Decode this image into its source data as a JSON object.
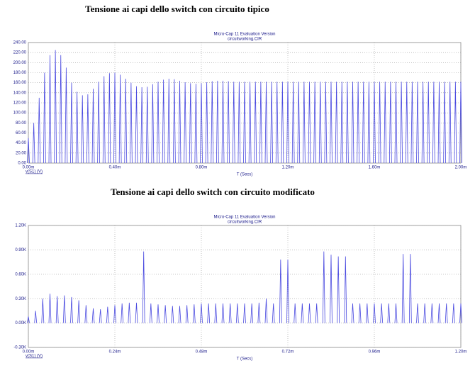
{
  "chart_data": [
    {
      "type": "stem",
      "caption": "Tensione ai capi dello switch con circuito tipico",
      "title": "Micro-Cap 11 Evaluation Version",
      "subtitle": "circuitworking.CIR",
      "x_label": "T (Secs)",
      "grid": true,
      "xlim": [
        0,
        2.0
      ],
      "xticks": [
        {
          "value": 0,
          "label": "0.00m"
        },
        {
          "value": 0.4,
          "label": "0.40m"
        },
        {
          "value": 0.8,
          "label": "0.80m"
        },
        {
          "value": 1.2,
          "label": "1.20m"
        },
        {
          "value": 1.6,
          "label": "1.60m"
        },
        {
          "value": 2.0,
          "label": "2.00m"
        }
      ],
      "ylim": [
        0,
        240
      ],
      "yticks": [
        {
          "value": 0,
          "label": "0.00"
        },
        {
          "value": 20,
          "label": "20.00"
        },
        {
          "value": 40,
          "label": "40.00"
        },
        {
          "value": 60,
          "label": "60.00"
        },
        {
          "value": 80,
          "label": "80.00"
        },
        {
          "value": 100,
          "label": "100.00"
        },
        {
          "value": 120,
          "label": "120.00"
        },
        {
          "value": 140,
          "label": "140.00"
        },
        {
          "value": 160,
          "label": "160.00"
        },
        {
          "value": 180,
          "label": "180.00"
        },
        {
          "value": 200,
          "label": "200.00"
        },
        {
          "value": 220,
          "label": "220.00"
        },
        {
          "value": 240,
          "label": "240.00"
        }
      ],
      "x": [
        0,
        0.025,
        0.05,
        0.075,
        0.1,
        0.125,
        0.15,
        0.175,
        0.2,
        0.225,
        0.25,
        0.275,
        0.3,
        0.325,
        0.35,
        0.375,
        0.4,
        0.425,
        0.45,
        0.475,
        0.5,
        0.525,
        0.55,
        0.575,
        0.6,
        0.625,
        0.65,
        0.675,
        0.7,
        0.725,
        0.75,
        0.775,
        0.8,
        0.825,
        0.85,
        0.875,
        0.9,
        0.925,
        0.95,
        0.975,
        1.0,
        1.025,
        1.05,
        1.075,
        1.1,
        1.125,
        1.15,
        1.175,
        1.2,
        1.225,
        1.25,
        1.275,
        1.3,
        1.325,
        1.35,
        1.375,
        1.4,
        1.425,
        1.45,
        1.475,
        1.5,
        1.525,
        1.55,
        1.575,
        1.6,
        1.625,
        1.65,
        1.675,
        1.7,
        1.725,
        1.75,
        1.775,
        1.8,
        1.825,
        1.85,
        1.875,
        1.9,
        1.925,
        1.95,
        1.975,
        2.0
      ],
      "series": [
        {
          "name": "v(S1) (V)",
          "color": "#4a4ae0",
          "values": [
            50,
            80,
            130,
            180,
            215,
            225,
            215,
            190,
            160,
            142,
            135,
            137,
            148,
            162,
            173,
            179,
            180,
            176,
            168,
            160,
            153,
            151,
            152,
            157,
            162,
            166,
            168,
            167,
            164,
            161,
            159,
            158,
            159,
            161,
            163,
            164,
            164,
            163,
            162,
            162,
            162,
            162,
            162,
            162,
            162,
            162,
            162,
            162,
            162,
            162,
            162,
            162,
            162,
            162,
            162,
            162,
            162,
            162,
            162,
            162,
            162,
            162,
            162,
            162,
            162,
            162,
            162,
            162,
            162,
            162,
            162,
            162,
            162,
            162,
            162,
            162,
            162,
            162,
            162,
            162,
            162
          ]
        }
      ]
    },
    {
      "type": "stem",
      "caption": "Tensione ai capi dello switch con circuito modificato",
      "title": "Micro-Cap 11 Evaluation Version",
      "subtitle": "circuitworking.CIR",
      "x_label": "T (Secs)",
      "grid": true,
      "xlim": [
        0,
        1.2
      ],
      "xticks": [
        {
          "value": 0,
          "label": "0.00m"
        },
        {
          "value": 0.24,
          "label": "0.24m"
        },
        {
          "value": 0.48,
          "label": "0.48m"
        },
        {
          "value": 0.72,
          "label": "0.72m"
        },
        {
          "value": 0.96,
          "label": "0.96m"
        },
        {
          "value": 1.2,
          "label": "1.20m"
        }
      ],
      "ylim": [
        -0.3,
        1.2
      ],
      "yticks": [
        {
          "value": -0.3,
          "label": "-0.30K"
        },
        {
          "value": 0,
          "label": "0.00K"
        },
        {
          "value": 0.3,
          "label": "0.30K"
        },
        {
          "value": 0.6,
          "label": "0.60K"
        },
        {
          "value": 0.9,
          "label": "0.90K"
        },
        {
          "value": 1.2,
          "label": "1.20K"
        }
      ],
      "x": [
        0,
        0.02,
        0.04,
        0.06,
        0.08,
        0.1,
        0.12,
        0.14,
        0.16,
        0.18,
        0.2,
        0.22,
        0.24,
        0.26,
        0.28,
        0.3,
        0.32,
        0.34,
        0.36,
        0.38,
        0.4,
        0.42,
        0.44,
        0.46,
        0.48,
        0.5,
        0.52,
        0.54,
        0.56,
        0.58,
        0.6,
        0.62,
        0.64,
        0.66,
        0.68,
        0.7,
        0.72,
        0.74,
        0.76,
        0.78,
        0.8,
        0.82,
        0.84,
        0.86,
        0.88,
        0.9,
        0.92,
        0.94,
        0.96,
        0.98,
        1.0,
        1.02,
        1.04,
        1.06,
        1.08,
        1.1,
        1.12,
        1.14,
        1.16,
        1.18,
        1.2
      ],
      "series": [
        {
          "name": "v(S1) (V)",
          "color": "#4a4ae0",
          "values": [
            0.08,
            0.15,
            0.3,
            0.36,
            0.33,
            0.34,
            0.32,
            0.28,
            0.22,
            0.18,
            0.17,
            0.2,
            0.22,
            0.24,
            0.25,
            0.25,
            0.88,
            0.24,
            0.23,
            0.22,
            0.21,
            0.21,
            0.22,
            0.23,
            0.24,
            0.24,
            0.24,
            0.24,
            0.24,
            0.24,
            0.24,
            0.24,
            0.25,
            0.3,
            0.24,
            0.78,
            0.78,
            0.24,
            0.24,
            0.24,
            0.24,
            0.88,
            0.84,
            0.82,
            0.82,
            0.24,
            0.24,
            0.24,
            0.24,
            0.24,
            0.24,
            0.24,
            0.85,
            0.85,
            0.24,
            0.24,
            0.24,
            0.24,
            0.24,
            0.24,
            0.24
          ]
        }
      ]
    }
  ]
}
